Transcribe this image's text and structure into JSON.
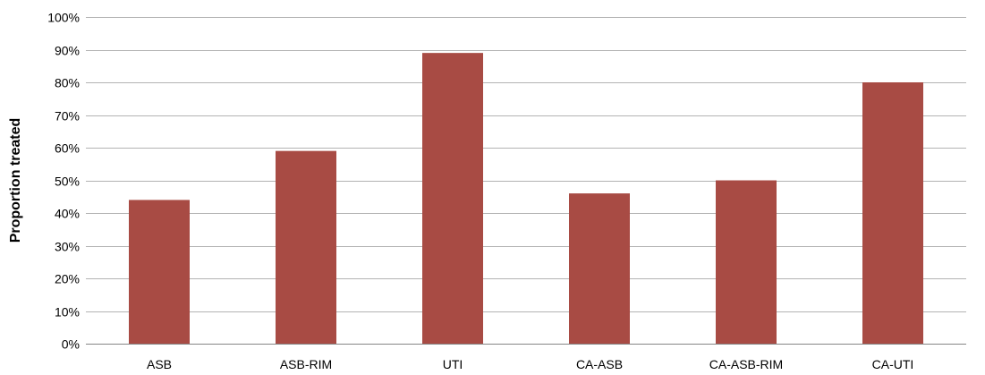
{
  "chart_data": {
    "type": "bar",
    "title": "",
    "xlabel": "",
    "ylabel": "Proportion treated",
    "categories": [
      "ASB",
      "ASB-RIM",
      "UTI",
      "CA-ASB",
      "CA-ASB-RIM",
      "CA-UTI"
    ],
    "values": [
      44,
      59,
      89,
      46,
      50,
      80
    ],
    "value_unit": "%",
    "ylim": [
      0,
      100
    ],
    "yticks": [
      "0%",
      "10%",
      "20%",
      "30%",
      "40%",
      "50%",
      "60%",
      "70%",
      "80%",
      "90%",
      "100%"
    ],
    "grid": true,
    "legend": "none",
    "bar_color": "#a84b44"
  }
}
